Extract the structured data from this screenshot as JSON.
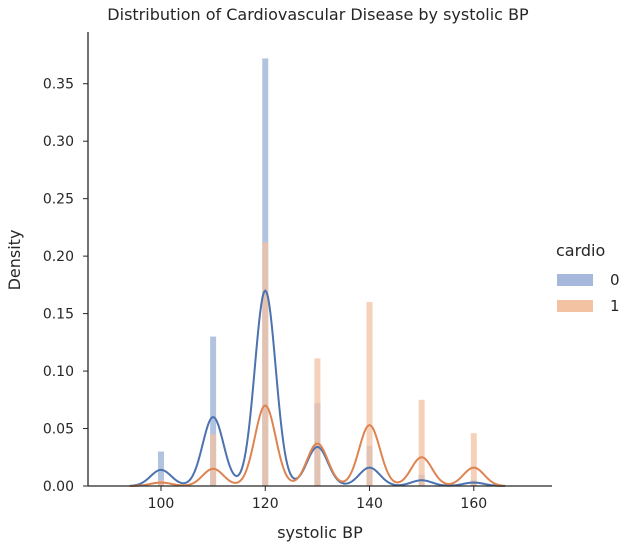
{
  "chart_data": {
    "type": "bar",
    "title": "Distribution of Cardiovascular Disease by systolic BP",
    "xlabel": "systolic BP",
    "ylabel": "Density",
    "xlim": [
      86,
      175
    ],
    "ylim": [
      0,
      0.395
    ],
    "x_ticks": [
      100,
      120,
      140,
      160
    ],
    "y_ticks": [
      0.0,
      0.05,
      0.1,
      0.15,
      0.2,
      0.25,
      0.3,
      0.35
    ],
    "y_tick_labels": [
      "0.00",
      "0.05",
      "0.10",
      "0.15",
      "0.20",
      "0.25",
      "0.30",
      "0.35"
    ],
    "grid": false,
    "legend": {
      "title": "cardio",
      "placement": "right"
    },
    "categories": [
      100,
      110,
      120,
      130,
      140,
      150,
      160
    ],
    "series": [
      {
        "name": "0",
        "bar_color": "#a5b8db",
        "line_color": "#4c72b0",
        "values": [
          0.03,
          0.13,
          0.372,
          0.072,
          0.035,
          0.01,
          0.005
        ],
        "kde": [
          0.014,
          0.06,
          0.17,
          0.034,
          0.016,
          0.005,
          0.003
        ]
      },
      {
        "name": "1",
        "bar_color": "#f3c2a3",
        "line_color": "#dd8452",
        "values": [
          0.005,
          0.045,
          0.212,
          0.111,
          0.16,
          0.075,
          0.046
        ],
        "kde": [
          0.003,
          0.015,
          0.07,
          0.037,
          0.053,
          0.025,
          0.016
        ]
      }
    ]
  }
}
